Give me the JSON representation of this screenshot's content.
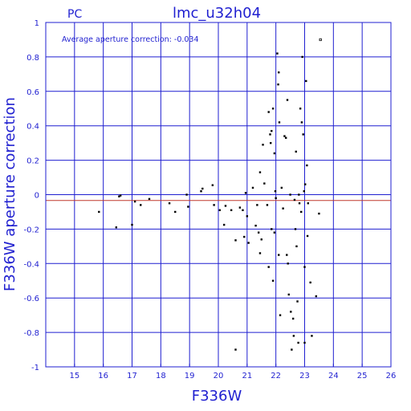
{
  "chart_data": {
    "type": "scatter",
    "label_left": "PC",
    "title": "lmc_u32h04",
    "xlabel": "F336W",
    "ylabel": "F336W aperture correction",
    "annotation": "Average aperture correction: -0.034",
    "xlim": [
      14,
      26
    ],
    "ylim": [
      -1,
      1
    ],
    "xticks": [
      15,
      16,
      17,
      18,
      19,
      20,
      21,
      22,
      23,
      24,
      25,
      26
    ],
    "yticks": [
      -1,
      -0.8,
      -0.6,
      -0.4,
      -0.2,
      0,
      0.2,
      0.4,
      0.6,
      0.8,
      1
    ],
    "ytick_labels": [
      "-1",
      "-0.8",
      "-0.6",
      "-0.4",
      "-0.2",
      "0",
      "0.2",
      "0.4",
      "0.6",
      "0.8",
      "1"
    ],
    "grid": true,
    "zero_line": 0,
    "average_line": -0.034,
    "colors": {
      "frame": "#1f1fd0",
      "points": "#000000",
      "average_line": "#c0392b"
    },
    "points": [
      [
        15.85,
        -0.1
      ],
      [
        16.45,
        -0.19
      ],
      [
        16.55,
        -0.01
      ],
      [
        16.6,
        -0.005
      ],
      [
        17.0,
        -0.175
      ],
      [
        17.1,
        -0.04
      ],
      [
        17.3,
        -0.06
      ],
      [
        17.6,
        -0.025
      ],
      [
        18.3,
        -0.05
      ],
      [
        18.5,
        -0.1
      ],
      [
        18.9,
        0.0
      ],
      [
        18.95,
        -0.07
      ],
      [
        19.4,
        0.02
      ],
      [
        19.45,
        0.035
      ],
      [
        19.8,
        0.055
      ],
      [
        19.85,
        -0.06
      ],
      [
        20.05,
        -0.09
      ],
      [
        20.2,
        -0.175
      ],
      [
        20.25,
        -0.065
      ],
      [
        20.45,
        -0.09
      ],
      [
        20.6,
        -0.265
      ],
      [
        20.6,
        -0.9
      ],
      [
        20.75,
        -0.075
      ],
      [
        20.85,
        -0.09
      ],
      [
        20.9,
        -0.245
      ],
      [
        20.95,
        0.01
      ],
      [
        21.0,
        -0.125
      ],
      [
        21.05,
        -0.28
      ],
      [
        21.2,
        0.04
      ],
      [
        21.3,
        -0.18
      ],
      [
        21.35,
        -0.06
      ],
      [
        21.45,
        0.13
      ],
      [
        21.4,
        -0.22
      ],
      [
        21.45,
        -0.34
      ],
      [
        21.5,
        -0.26
      ],
      [
        21.55,
        0.29
      ],
      [
        21.6,
        0.065
      ],
      [
        21.7,
        -0.06
      ],
      [
        21.75,
        0.48
      ],
      [
        21.75,
        -0.42
      ],
      [
        21.8,
        0.35
      ],
      [
        21.82,
        0.3
      ],
      [
        21.85,
        0.37
      ],
      [
        21.85,
        -0.2
      ],
      [
        21.9,
        0.5
      ],
      [
        21.9,
        -0.5
      ],
      [
        21.95,
        0.24
      ],
      [
        21.95,
        -0.22
      ],
      [
        21.98,
        0.02
      ],
      [
        22.0,
        -0.02
      ],
      [
        22.05,
        0.82
      ],
      [
        22.08,
        0.64
      ],
      [
        22.1,
        0.71
      ],
      [
        22.1,
        -0.35
      ],
      [
        22.12,
        0.42
      ],
      [
        22.15,
        -0.7
      ],
      [
        22.2,
        0.04
      ],
      [
        22.25,
        -0.08
      ],
      [
        22.3,
        0.34
      ],
      [
        22.35,
        0.33
      ],
      [
        22.38,
        -0.35
      ],
      [
        22.4,
        0.55
      ],
      [
        22.42,
        -0.4
      ],
      [
        22.45,
        -0.58
      ],
      [
        22.5,
        0.0
      ],
      [
        22.52,
        -0.68
      ],
      [
        22.55,
        -0.9
      ],
      [
        22.6,
        -0.72
      ],
      [
        22.62,
        -0.82
      ],
      [
        22.65,
        -0.03
      ],
      [
        22.68,
        -0.2
      ],
      [
        22.7,
        0.25
      ],
      [
        22.72,
        -0.3
      ],
      [
        22.75,
        -0.62
      ],
      [
        22.78,
        -0.86
      ],
      [
        22.8,
        0.0
      ],
      [
        22.82,
        -0.05
      ],
      [
        22.85,
        0.5
      ],
      [
        22.88,
        -0.1
      ],
      [
        22.9,
        0.42
      ],
      [
        22.92,
        0.8
      ],
      [
        22.95,
        0.35
      ],
      [
        22.98,
        0.02
      ],
      [
        23.0,
        -0.42
      ],
      [
        23.0,
        -0.86
      ],
      [
        23.02,
        0.06
      ],
      [
        23.05,
        0.66
      ],
      [
        23.08,
        0.17
      ],
      [
        23.1,
        -0.24
      ],
      [
        23.12,
        -0.05
      ],
      [
        23.2,
        -0.51
      ],
      [
        23.25,
        -0.82
      ],
      [
        23.4,
        -0.59
      ],
      [
        23.5,
        -0.11
      ],
      [
        23.55,
        0.9
      ]
    ]
  }
}
